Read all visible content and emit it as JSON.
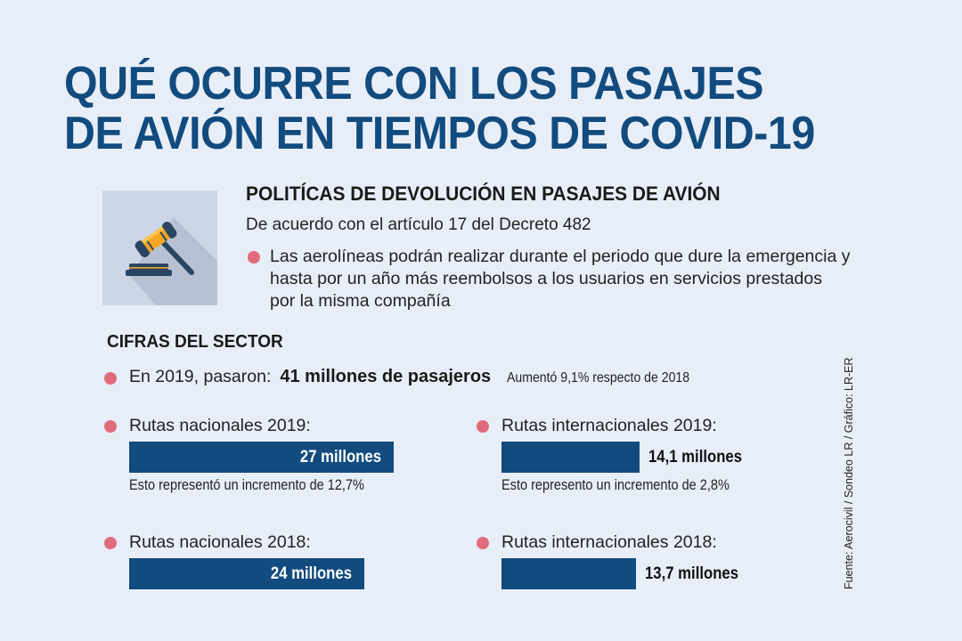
{
  "title": {
    "line1": "QUÉ OCURRE CON LOS PASAJES",
    "line2": "DE AVIÓN EN TIEMPOS DE COVID-19"
  },
  "policy": {
    "icon": "gavel-icon",
    "heading": "POLITÍCAS DE DEVOLUCIÓN EN PASAJES DE AVIÓN",
    "subheading": "De acuerdo con el artículo 17 del Decreto 482",
    "bullet": "Las aerolíneas podrán realizar durante el periodo que dure la emergencia y hasta por un año más reembolsos a los usuarios en servicios prestados por la misma compañía"
  },
  "sector": {
    "heading": "CIFRAS DEL SECTOR",
    "passengers": {
      "lead": "En 2019, pasaron:",
      "value": "41 millones de pasajeros",
      "note": "Aumentó 9,1% respecto de 2018"
    }
  },
  "colors": {
    "title": "#124b7e",
    "bar": "#124b7e",
    "bullet": "#e06b7c",
    "background": "#e8eef8"
  },
  "chart_data": {
    "type": "bar",
    "title": "CIFRAS DEL SECTOR",
    "unit": "millones de pasajeros",
    "categories": [
      "Rutas nacionales 2019",
      "Rutas internacionales 2019",
      "Rutas nacionales 2018",
      "Rutas internacionales 2018"
    ],
    "values": [
      27,
      14.1,
      24,
      13.7
    ],
    "items": [
      {
        "label": "Rutas nacionales 2019:",
        "value": 27,
        "value_label": "27 millones",
        "label_inside": true,
        "desc": "Esto representó un incremento de 12,7%"
      },
      {
        "label": "Rutas internacionales 2019:",
        "value": 14.1,
        "value_label": "14,1 millones",
        "label_inside": false,
        "desc": "Esto represento un incremento de 2,8%"
      },
      {
        "label": "Rutas nacionales 2018:",
        "value": 24,
        "value_label": "24 millones",
        "label_inside": true,
        "desc": ""
      },
      {
        "label": "Rutas internacionales 2018:",
        "value": 13.7,
        "value_label": "13,7 millones",
        "label_inside": false,
        "desc": ""
      }
    ],
    "xlabel": "",
    "ylabel": "",
    "orientation": "horizontal",
    "grid": false
  },
  "source": "Fuente: Aerocivil / Sondeo LR / Gráfico: LR-ER"
}
